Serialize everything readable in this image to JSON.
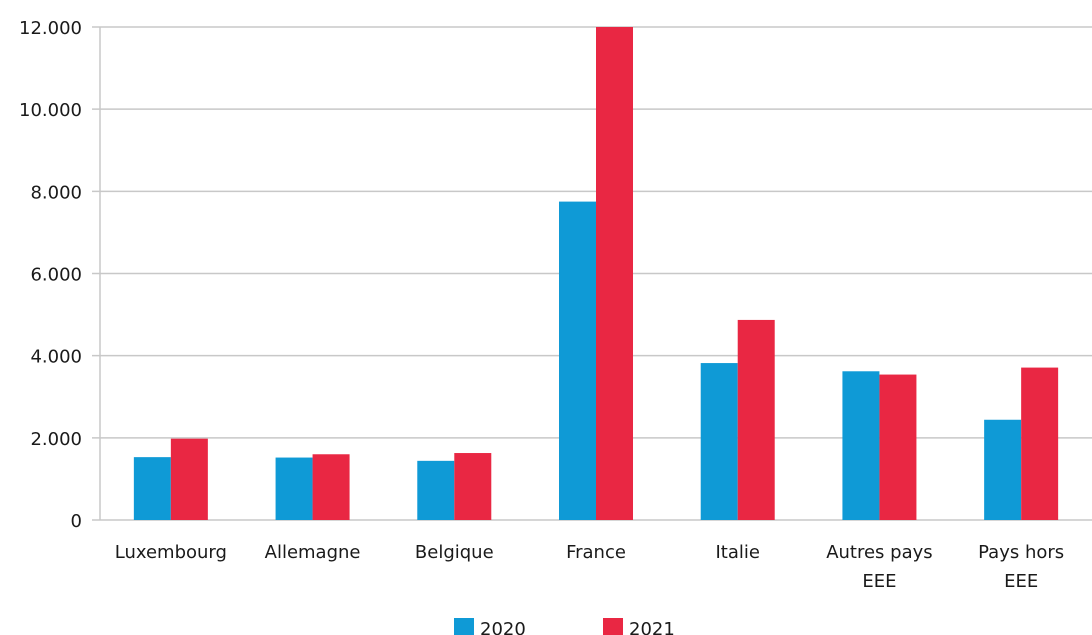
{
  "chart_data": {
    "type": "bar",
    "categories": [
      [
        "Luxembourg"
      ],
      [
        "Allemagne"
      ],
      [
        "Belgique"
      ],
      [
        "France"
      ],
      [
        "Italie"
      ],
      [
        "Autres pays",
        "EEE"
      ],
      [
        "Pays hors",
        "EEE"
      ]
    ],
    "series": [
      {
        "name": "2020",
        "color": "#0f9ad6",
        "values": [
          1530,
          1520,
          1440,
          7750,
          3820,
          3620,
          2440
        ]
      },
      {
        "name": "2021",
        "color": "#e92743",
        "values": [
          1980,
          1600,
          1630,
          12000,
          4870,
          3540,
          3710
        ]
      }
    ],
    "yticks": [
      "0",
      "2.000",
      "4.000",
      "6.000",
      "8.000",
      "10.000",
      "12.000"
    ],
    "ylim": [
      0,
      12000
    ],
    "grid": true,
    "legend_position": "bottom-center",
    "title": "",
    "xlabel": "",
    "ylabel": ""
  }
}
